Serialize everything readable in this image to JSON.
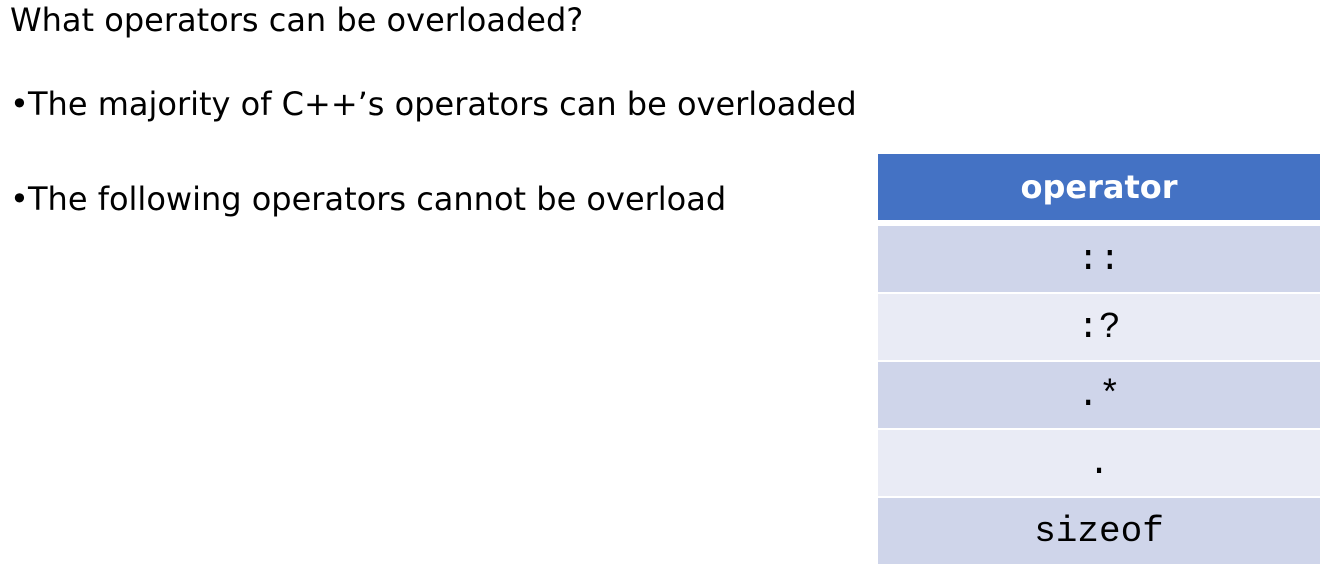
{
  "slide": {
    "title": "What operators can be overloaded?",
    "bullets": [
      "The majority of C++’s operators can be overloaded",
      "The following operators cannot be overload"
    ]
  },
  "table": {
    "header": "operator",
    "rows": [
      ":: ",
      ":?",
      ".*",
      ".",
      "sizeof"
    ]
  },
  "colors": {
    "header_bg": "#4472c4",
    "row_odd_bg": "#cfd5ea",
    "row_even_bg": "#e9ebf5"
  }
}
